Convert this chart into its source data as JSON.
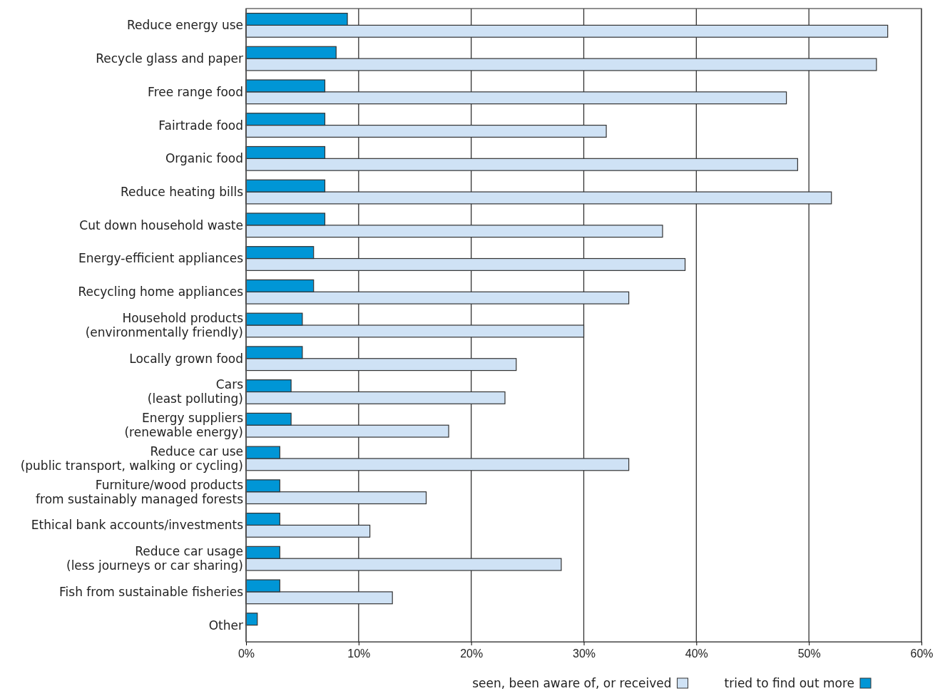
{
  "chart_data": {
    "type": "bar",
    "orientation": "horizontal",
    "categories": [
      "Reduce energy use",
      "Recycle glass and paper",
      "Free range food",
      "Fairtrade food",
      "Organic food",
      "Reduce heating bills",
      "Cut down household waste",
      "Energy-efficient appliances",
      "Recycling home appliances",
      "Household products\n(environmentally friendly)",
      "Locally grown food",
      "Cars\n(least polluting)",
      "Energy suppliers\n(renewable energy)",
      "Reduce car use\n(public transport, walking or cycling)",
      "Furniture/wood products\nfrom sustainably managed forests",
      "Ethical bank accounts/investments",
      "Reduce car usage\n(less journeys or car sharing)",
      "Fish from sustainable fisheries",
      "Other"
    ],
    "series": [
      {
        "name": "seen, been aware of, or received",
        "color": "#cfe2f5",
        "values": [
          57,
          56,
          48,
          32,
          49,
          52,
          37,
          39,
          34,
          30,
          24,
          23,
          18,
          34,
          16,
          11,
          28,
          13,
          null
        ]
      },
      {
        "name": "tried to find out more",
        "color": "#0096d6",
        "values": [
          9,
          8,
          7,
          7,
          7,
          7,
          7,
          6,
          6,
          5,
          5,
          4,
          4,
          3,
          3,
          3,
          3,
          3,
          1
        ]
      }
    ],
    "xlim": [
      0,
      60
    ],
    "xticks": [
      {
        "value": 0,
        "label": "0%"
      },
      {
        "value": 10,
        "label": "10%"
      },
      {
        "value": 20,
        "label": "20%"
      },
      {
        "value": 30,
        "label": "30%"
      },
      {
        "value": 40,
        "label": "40%"
      },
      {
        "value": 50,
        "label": "50%"
      },
      {
        "value": 60,
        "label": "60%"
      }
    ],
    "grid": "x",
    "legend": "bottom right"
  }
}
